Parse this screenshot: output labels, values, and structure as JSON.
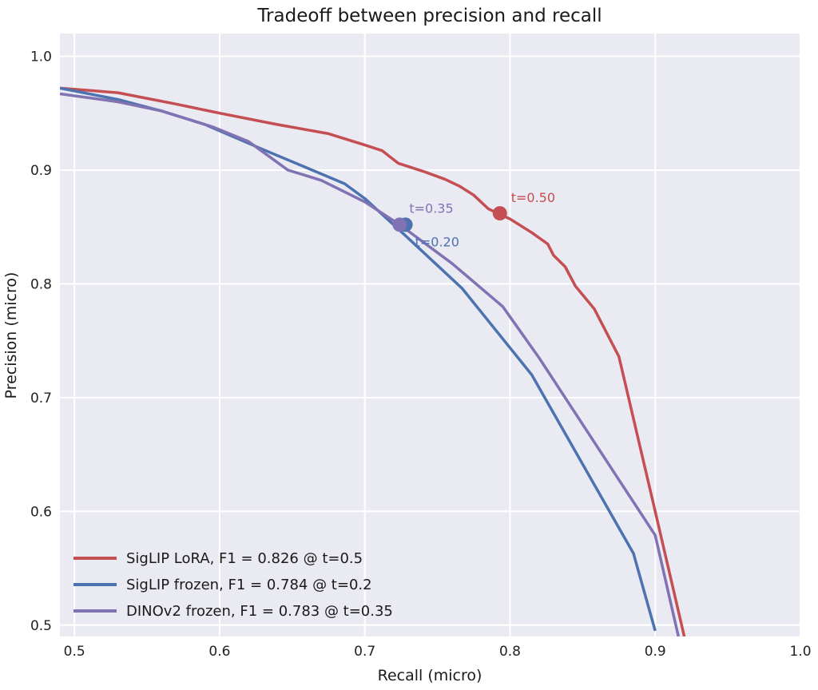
{
  "chart_data": {
    "type": "line",
    "title": "Tradeoff between precision and recall",
    "xlabel": "Recall (micro)",
    "ylabel": "Precision (micro)",
    "xlim": [
      0.49,
      1.0
    ],
    "ylim": [
      0.49,
      1.02
    ],
    "xticks": [
      "0.5",
      "0.6",
      "0.7",
      "0.8",
      "0.9",
      "1.0"
    ],
    "yticks": [
      "0.5",
      "0.6",
      "0.7",
      "0.8",
      "0.9",
      "1.0"
    ],
    "grid": true,
    "background": "#eaeaf2",
    "legend_position": "lower-left",
    "series": [
      {
        "name": "SigLIP LoRA, F1 = 0.826 @ t=0.5",
        "color": "#c44e52",
        "x": [
          0.49,
          0.53,
          0.57,
          0.6,
          0.64,
          0.675,
          0.7,
          0.712,
          0.723,
          0.74,
          0.755,
          0.765,
          0.775,
          0.785,
          0.8,
          0.815,
          0.826,
          0.83,
          0.838,
          0.845,
          0.858,
          0.875,
          0.9,
          0.92
        ],
        "y": [
          0.972,
          0.968,
          0.958,
          0.95,
          0.94,
          0.932,
          0.922,
          0.917,
          0.906,
          0.899,
          0.892,
          0.886,
          0.878,
          0.866,
          0.857,
          0.845,
          0.835,
          0.825,
          0.815,
          0.798,
          0.778,
          0.736,
          0.6,
          0.49
        ],
        "marker": {
          "x": 0.793,
          "y": 0.862,
          "label": "t=0.50"
        }
      },
      {
        "name": "SigLIP frozen, F1 = 0.784 @ t=0.2",
        "color": "#4c72b0",
        "x": [
          0.49,
          0.53,
          0.56,
          0.59,
          0.63,
          0.66,
          0.686,
          0.7,
          0.73,
          0.767,
          0.815,
          0.885,
          0.9
        ],
        "y": [
          0.972,
          0.962,
          0.952,
          0.94,
          0.918,
          0.902,
          0.888,
          0.875,
          0.84,
          0.796,
          0.72,
          0.563,
          0.495
        ],
        "marker": {
          "x": 0.728,
          "y": 0.852,
          "label": "t=0.20"
        }
      },
      {
        "name": "DINOv2 frozen, F1 = 0.783 @ t=0.35",
        "color": "#8172b3",
        "x": [
          0.49,
          0.53,
          0.56,
          0.595,
          0.62,
          0.647,
          0.67,
          0.7,
          0.724,
          0.76,
          0.795,
          0.82,
          0.9,
          0.916
        ],
        "y": [
          0.967,
          0.96,
          0.952,
          0.938,
          0.925,
          0.9,
          0.891,
          0.872,
          0.852,
          0.818,
          0.78,
          0.735,
          0.579,
          0.49
        ],
        "marker": {
          "x": 0.724,
          "y": 0.852,
          "label": "t=0.35"
        }
      }
    ]
  }
}
